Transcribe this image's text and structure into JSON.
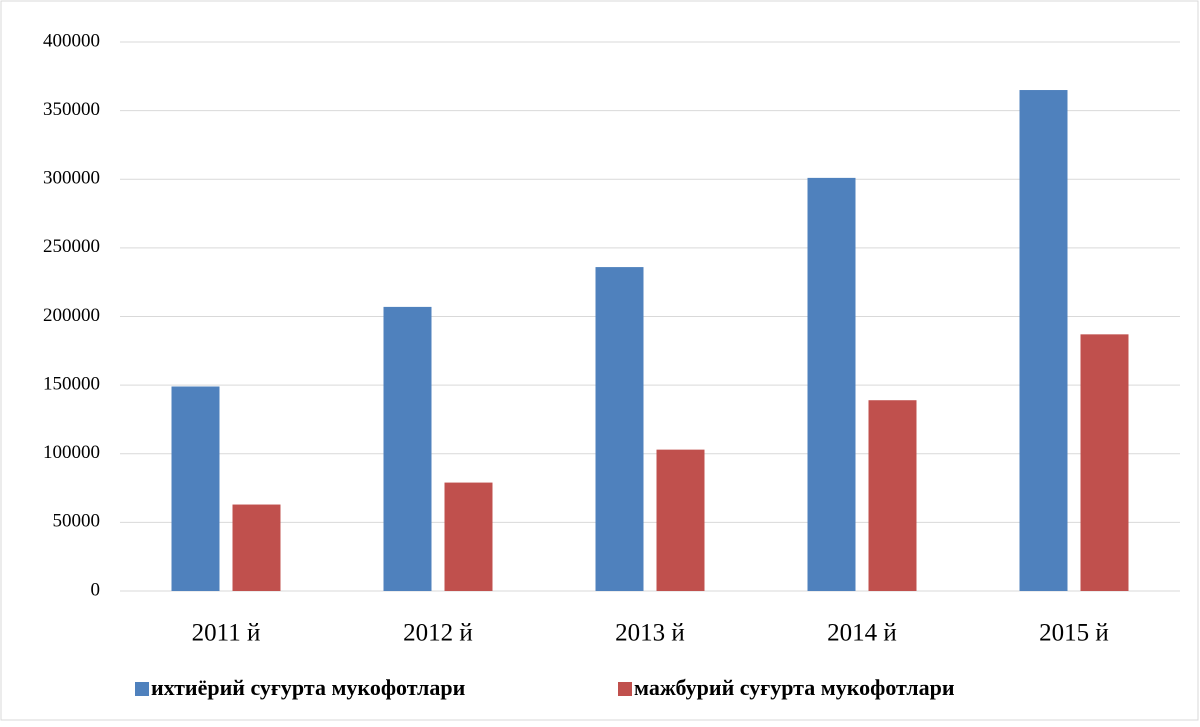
{
  "chart_data": {
    "type": "bar",
    "categories": [
      "2011 й",
      "2012 й",
      "2013 й",
      "2014 й",
      "2015 й"
    ],
    "series": [
      {
        "name": "ихтиёрий суғурта мукофотлари",
        "color": "#4f81bd",
        "values": [
          149000,
          207000,
          236000,
          301000,
          365000
        ]
      },
      {
        "name": "мажбурий суғурта мукофотлари",
        "color": "#c0504d",
        "values": [
          63000,
          79000,
          103000,
          139000,
          187000
        ]
      }
    ],
    "ylim": [
      0,
      400000
    ],
    "yticks": [
      0,
      50000,
      100000,
      150000,
      200000,
      250000,
      300000,
      350000,
      400000
    ],
    "grid": true,
    "legend": "bottom"
  }
}
